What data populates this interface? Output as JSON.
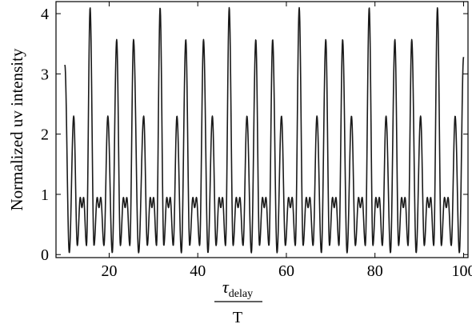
{
  "chart_data": {
    "type": "line",
    "title": "",
    "ylabel": "Normalized uv intensity",
    "xlabel": {
      "numerator_symbol": "τ",
      "numerator_subscript": "delay",
      "denominator": "T"
    },
    "xlim": [
      8,
      101
    ],
    "ylim": [
      -0.05,
      4.2
    ],
    "x_ticks": [
      20,
      40,
      60,
      80,
      100
    ],
    "y_ticks": [
      0,
      1,
      2,
      3,
      4
    ],
    "grid": false,
    "series": [
      {
        "style": "solid",
        "color": "#1a1a1a",
        "peaks": [
          {
            "x": 10.0,
            "y": 3.15
          },
          {
            "x": 12.0,
            "y": 2.3
          },
          {
            "x": 15.7,
            "y": 4.1
          },
          {
            "x": 19.7,
            "y": 2.3
          },
          {
            "x": 21.7,
            "y": 3.57
          },
          {
            "x": 25.5,
            "y": 3.57
          },
          {
            "x": 27.8,
            "y": 2.3
          },
          {
            "x": 31.5,
            "y": 4.1
          },
          {
            "x": 35.3,
            "y": 2.3
          },
          {
            "x": 37.3,
            "y": 3.57
          },
          {
            "x": 41.3,
            "y": 3.57
          },
          {
            "x": 43.3,
            "y": 2.3
          },
          {
            "x": 47.1,
            "y": 4.1
          },
          {
            "x": 51.1,
            "y": 2.3
          },
          {
            "x": 53.1,
            "y": 3.57
          },
          {
            "x": 56.9,
            "y": 3.57
          },
          {
            "x": 58.9,
            "y": 2.3
          },
          {
            "x": 62.9,
            "y": 4.1
          },
          {
            "x": 66.9,
            "y": 2.3
          },
          {
            "x": 68.9,
            "y": 3.57
          },
          {
            "x": 72.7,
            "y": 3.57
          },
          {
            "x": 74.7,
            "y": 2.3
          },
          {
            "x": 78.7,
            "y": 4.1
          },
          {
            "x": 82.5,
            "y": 2.3
          },
          {
            "x": 84.5,
            "y": 3.57
          },
          {
            "x": 88.3,
            "y": 3.57
          },
          {
            "x": 90.3,
            "y": 2.3
          },
          {
            "x": 94.1,
            "y": 4.1
          },
          {
            "x": 98.1,
            "y": 2.3
          },
          {
            "x": 100.0,
            "y": 3.28
          }
        ],
        "minimum_level": 0.15,
        "shoulder_level": 0.95
      }
    ]
  }
}
